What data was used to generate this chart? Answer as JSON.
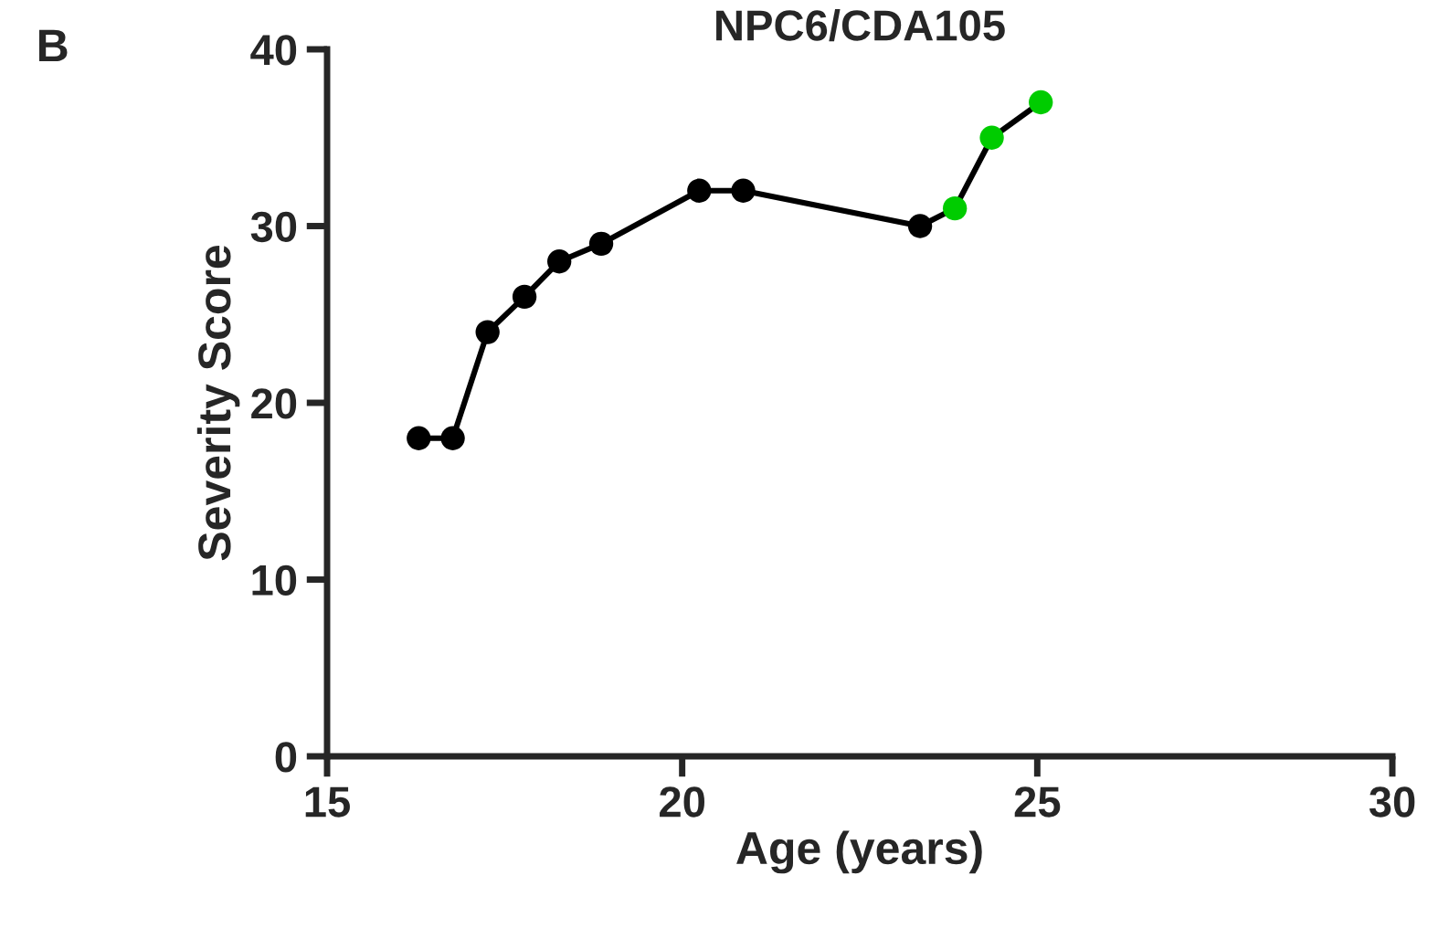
{
  "chart_data": {
    "type": "line",
    "title": "NPC6/CDA105",
    "xlabel": "Age (years)",
    "ylabel": "Severity Score",
    "annotations": [
      "B"
    ],
    "x": [
      16.29,
      16.77,
      17.26,
      17.78,
      18.27,
      18.86,
      20.24,
      20.86,
      23.35,
      23.84,
      24.36,
      25.05
    ],
    "series": [
      {
        "color": "#000000",
        "values": [
          18,
          18,
          24,
          26,
          28,
          29,
          32,
          32,
          30,
          31,
          35,
          37
        ],
        "colors": [
          "#000000",
          "#000000",
          "#000000",
          "#000000",
          "#000000",
          "#000000",
          "#000000",
          "#000000",
          "#000000",
          "#00cc00",
          "#00cc00",
          "#00cc00"
        ]
      }
    ],
    "xlim": [
      15,
      30
    ],
    "xticks": [
      15,
      20,
      25,
      30
    ],
    "ylim": [
      0,
      40
    ],
    "yticks": [
      0,
      10,
      20,
      30,
      40
    ],
    "marker": "circle",
    "line_style": "solid",
    "grid": false
  }
}
